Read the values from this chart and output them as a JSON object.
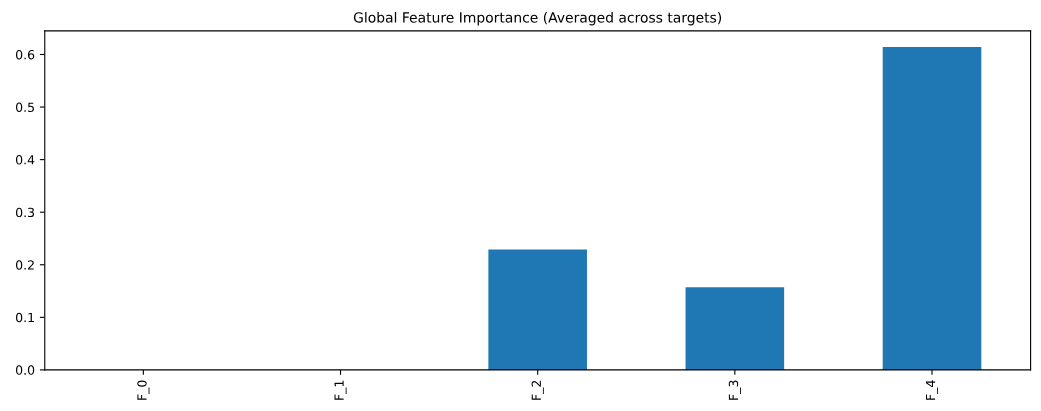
{
  "chart_data": {
    "type": "bar",
    "title": "Global Feature Importance (Averaged across targets)",
    "categories": [
      "F_0",
      "F_1",
      "F_2",
      "F_3",
      "F_4"
    ],
    "values": [
      0,
      0,
      0.229,
      0.157,
      0.614
    ],
    "color": "#1f77b4",
    "ylim": [
      0,
      0.645
    ],
    "yticks": [
      {
        "value": 0,
        "label": "0.0"
      },
      0.1,
      0.2,
      0.3,
      0.4,
      0.5,
      0.6
    ],
    "grid": false
  }
}
